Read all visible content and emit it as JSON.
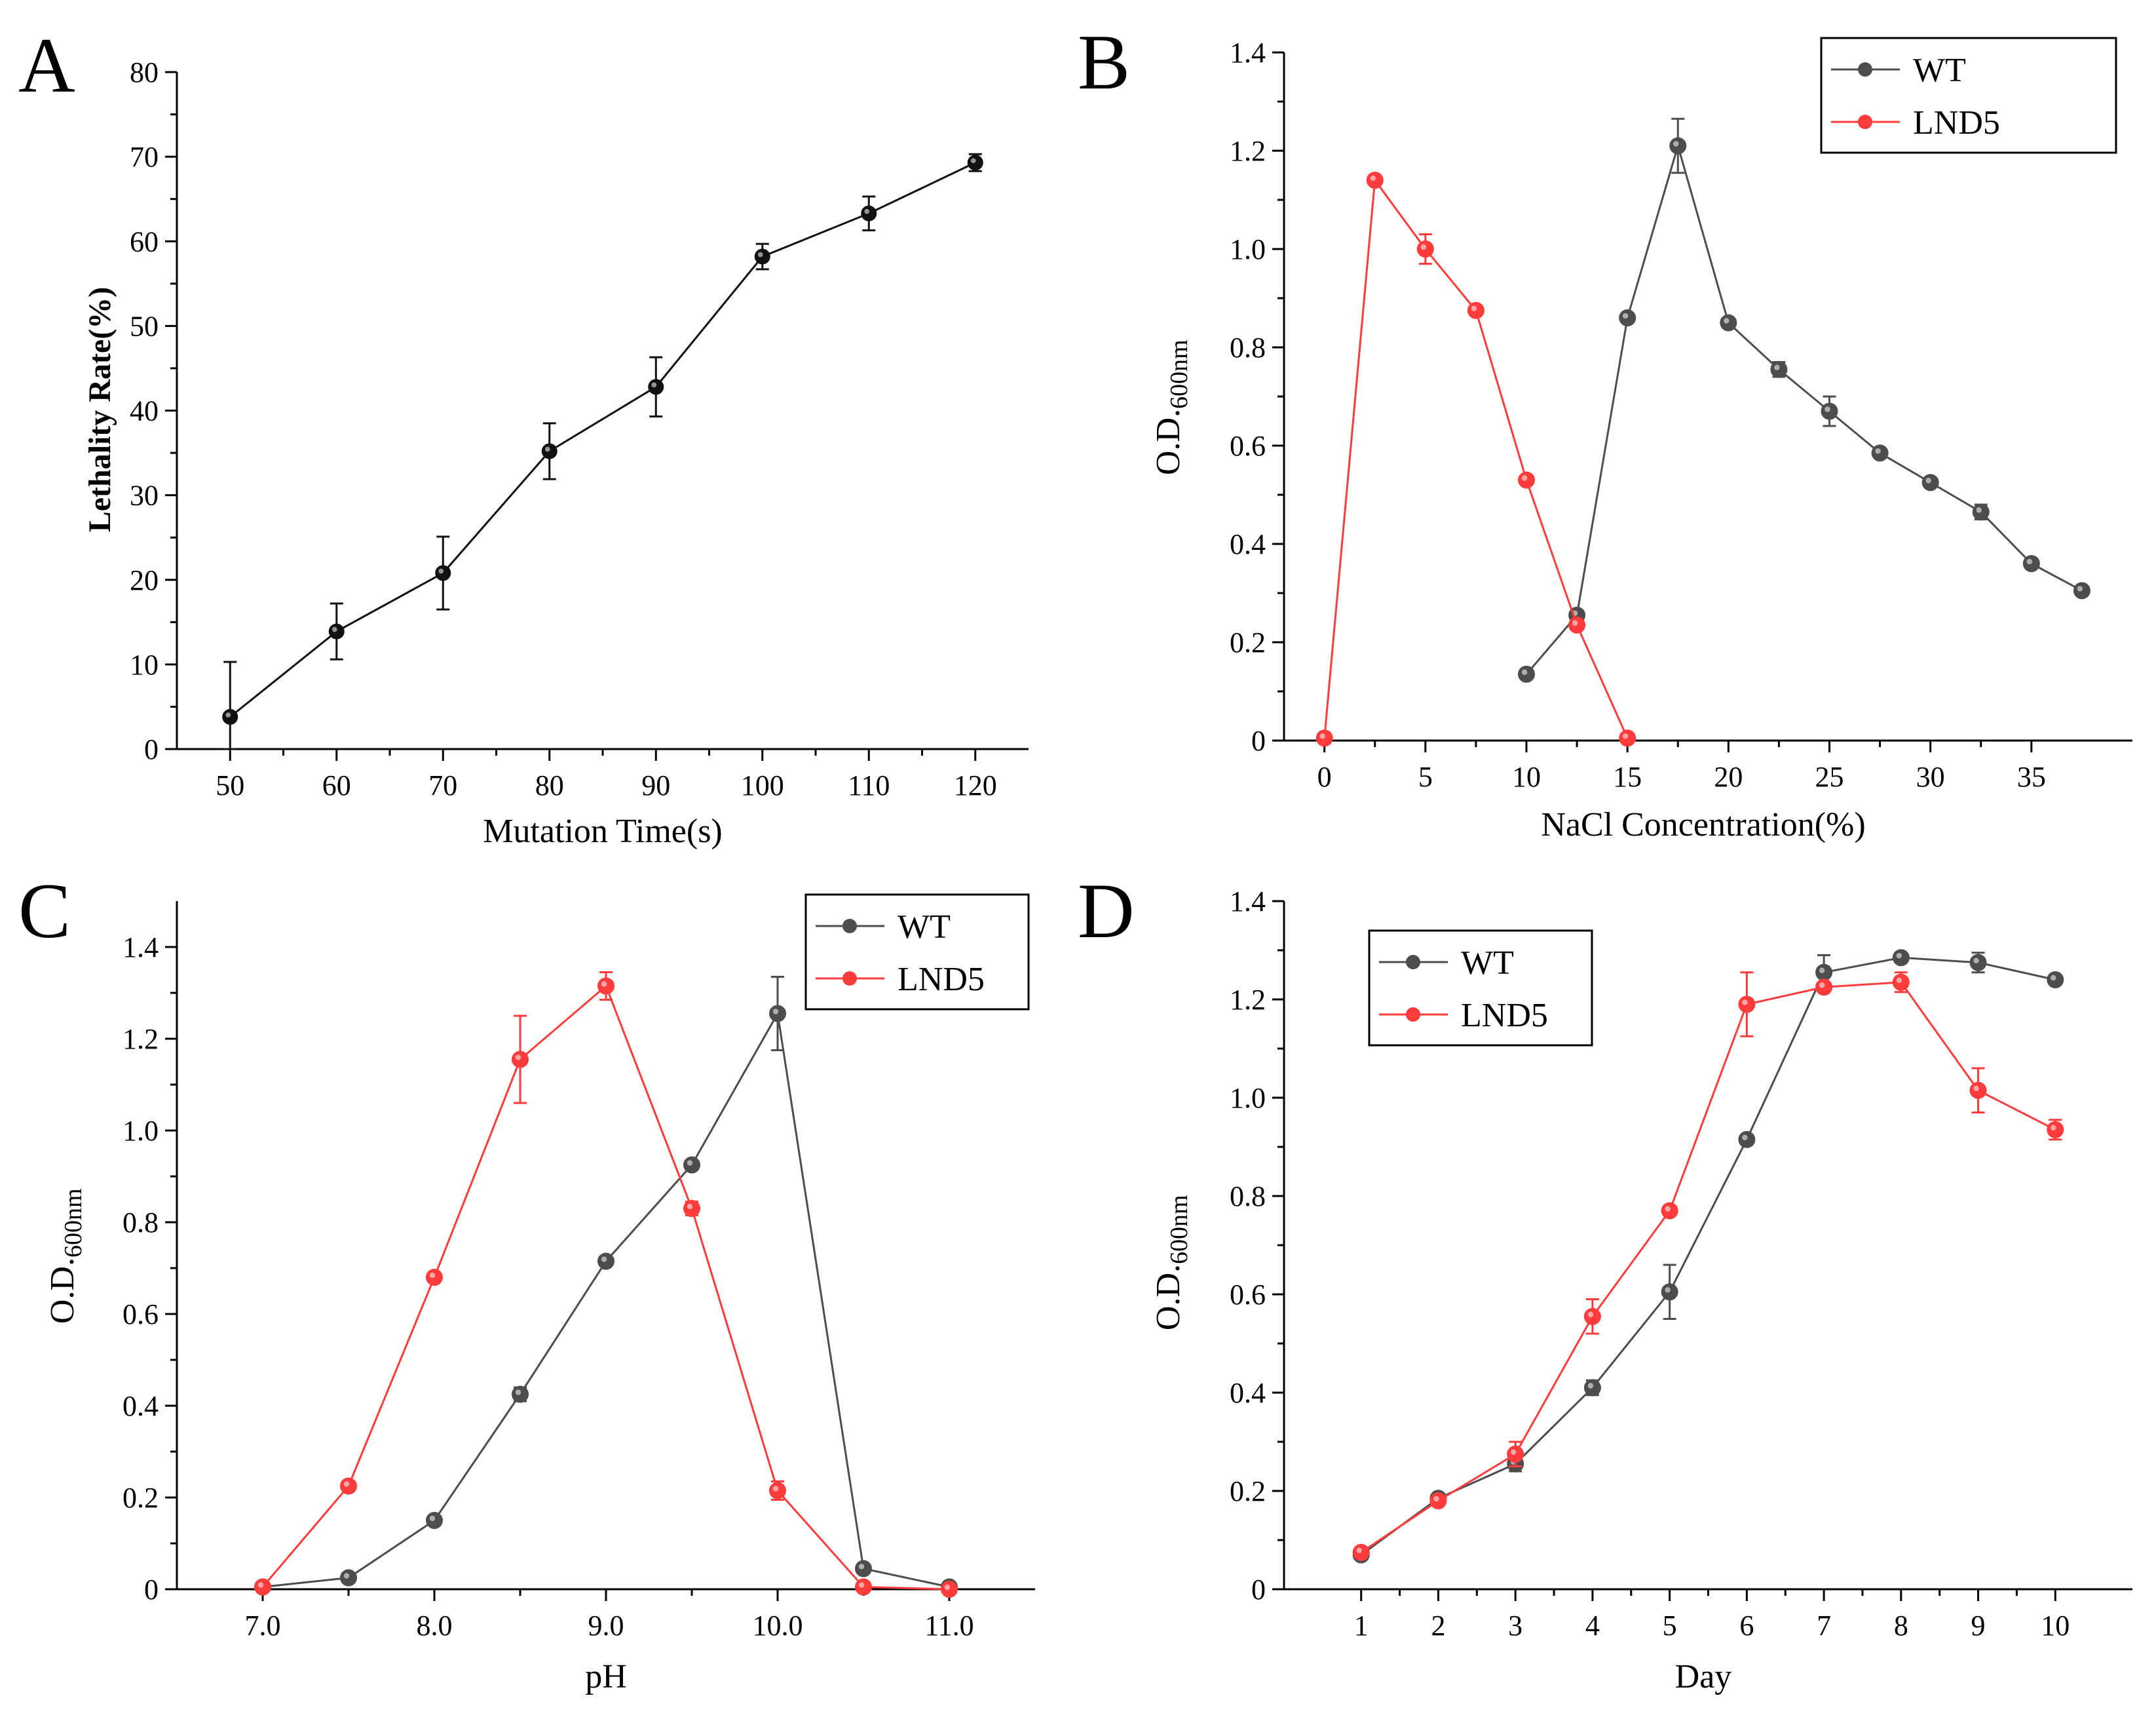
{
  "colors": {
    "wt": "#4d4d4d",
    "lnd5": "#ff3b3b",
    "mono": "#111111",
    "axis": "#000000"
  },
  "chart_data": [
    {
      "panel": "A",
      "type": "line",
      "xlabel": "Mutation Time(s)",
      "ylabel": "Lethality Rate(%)",
      "xlim": [
        45,
        125
      ],
      "ylim": [
        0,
        80
      ],
      "xticks": [
        50,
        60,
        70,
        80,
        90,
        100,
        110,
        120
      ],
      "yticks": [
        0,
        10,
        20,
        30,
        40,
        50,
        60,
        70,
        80
      ],
      "series": [
        {
          "name": "Lethality Rate",
          "color": "#111111",
          "x": [
            50,
            60,
            70,
            80,
            90,
            100,
            110,
            120
          ],
          "y": [
            3.8,
            13.9,
            20.8,
            35.2,
            42.8,
            58.2,
            63.3,
            69.3
          ],
          "err": [
            6.5,
            3.3,
            4.3,
            3.3,
            3.5,
            1.5,
            2.0,
            1.0
          ]
        }
      ]
    },
    {
      "panel": "B",
      "type": "line",
      "xlabel": "NaCl Concentration(%)",
      "ylabel_main": "O.D.",
      "ylabel_sub": "600nm",
      "xlim": [
        -2,
        40
      ],
      "ylim": [
        0,
        1.4
      ],
      "xticks": [
        0,
        5,
        10,
        15,
        20,
        25,
        30,
        35
      ],
      "yticks": [
        0,
        0.2,
        0.4,
        0.6,
        0.8,
        1.0,
        1.2,
        1.4
      ],
      "ytick_labels": [
        "0",
        "0.2",
        "0.4",
        "0.6",
        "0.8",
        "1.0",
        "1.2",
        "1.4"
      ],
      "legend": {
        "position": "top-right",
        "entries": [
          "WT",
          "LND5"
        ]
      },
      "series": [
        {
          "name": "WT",
          "color": "#4d4d4d",
          "x": [
            10,
            12.5,
            15,
            17.5,
            20,
            22.5,
            25,
            27.5,
            30,
            32.5,
            35,
            37.5
          ],
          "y": [
            0.135,
            0.255,
            0.86,
            1.21,
            0.85,
            0.755,
            0.67,
            0.585,
            0.525,
            0.465,
            0.36,
            0.305
          ],
          "err": [
            0,
            0.01,
            0,
            0.055,
            0,
            0.015,
            0.03,
            0,
            0,
            0.015,
            0,
            0
          ]
        },
        {
          "name": "LND5",
          "color": "#ff3b3b",
          "x": [
            0,
            2.5,
            5,
            7.5,
            10,
            12.5,
            15
          ],
          "y": [
            0.005,
            1.14,
            1.0,
            0.875,
            0.53,
            0.235,
            0.005
          ],
          "err": [
            0,
            0,
            0.03,
            0,
            0,
            0,
            0
          ]
        }
      ]
    },
    {
      "panel": "C",
      "type": "line",
      "xlabel": "pH",
      "ylabel_main": "O.D.",
      "ylabel_sub": "600nm",
      "xlim": [
        6.5,
        11.5
      ],
      "ylim": [
        0,
        1.5
      ],
      "xticks": [
        7.0,
        8.0,
        9.0,
        10.0,
        11.0
      ],
      "xtick_labels": [
        "7.0",
        "8.0",
        "9.0",
        "10.0",
        "11.0"
      ],
      "yticks": [
        0,
        0.2,
        0.4,
        0.6,
        0.8,
        1.0,
        1.2,
        1.4
      ],
      "ytick_labels": [
        "0",
        "0.2",
        "0.4",
        "0.6",
        "0.8",
        "1.0",
        "1.2",
        "1.4"
      ],
      "legend": {
        "position": "top-right",
        "entries": [
          "WT",
          "LND5"
        ]
      },
      "series": [
        {
          "name": "WT",
          "color": "#4d4d4d",
          "x": [
            7.0,
            7.5,
            8.0,
            8.5,
            9.0,
            9.5,
            10.0,
            10.5,
            11.0
          ],
          "y": [
            0.005,
            0.025,
            0.15,
            0.425,
            0.715,
            0.925,
            1.255,
            0.045,
            0.005
          ],
          "err": [
            0,
            0,
            0,
            0.015,
            0,
            0,
            0.08,
            0,
            0
          ]
        },
        {
          "name": "LND5",
          "color": "#ff3b3b",
          "x": [
            7.0,
            7.5,
            8.0,
            8.5,
            9.0,
            9.5,
            10.0,
            10.5,
            11.0
          ],
          "y": [
            0.005,
            0.225,
            0.68,
            1.155,
            1.315,
            0.83,
            0.215,
            0.005,
            0.0
          ],
          "err": [
            0,
            0,
            0,
            0.095,
            0.03,
            0.015,
            0.02,
            0,
            0
          ]
        }
      ]
    },
    {
      "panel": "D",
      "type": "line",
      "xlabel": "Day",
      "ylabel_main": "O.D.",
      "ylabel_sub": "600nm",
      "xlim": [
        0,
        11
      ],
      "ylim": [
        0,
        1.4
      ],
      "xticks": [
        1,
        2,
        3,
        4,
        5,
        6,
        7,
        8,
        9,
        10
      ],
      "yticks": [
        0,
        0.2,
        0.4,
        0.6,
        0.8,
        1.0,
        1.2,
        1.4
      ],
      "ytick_labels": [
        "0",
        "0.2",
        "0.4",
        "0.6",
        "0.8",
        "1.0",
        "1.2",
        "1.4"
      ],
      "legend": {
        "position": "top-left",
        "entries": [
          "WT",
          "LND5"
        ]
      },
      "series": [
        {
          "name": "WT",
          "color": "#4d4d4d",
          "x": [
            1,
            2,
            3,
            4,
            5,
            6,
            7,
            8,
            9,
            10
          ],
          "y": [
            0.07,
            0.185,
            0.255,
            0.41,
            0.605,
            0.915,
            1.255,
            1.285,
            1.275,
            1.24
          ],
          "err": [
            0,
            0,
            0.015,
            0.015,
            0.055,
            0,
            0.035,
            0,
            0.02,
            0
          ]
        },
        {
          "name": "LND5",
          "color": "#ff3b3b",
          "x": [
            1,
            2,
            3,
            4,
            5,
            6,
            7,
            8,
            9,
            10
          ],
          "y": [
            0.075,
            0.18,
            0.275,
            0.555,
            0.77,
            1.19,
            1.225,
            1.235,
            1.015,
            0.935
          ],
          "err": [
            0,
            0,
            0.025,
            0.035,
            0,
            0.065,
            0,
            0.02,
            0.045,
            0.02
          ]
        }
      ]
    }
  ]
}
